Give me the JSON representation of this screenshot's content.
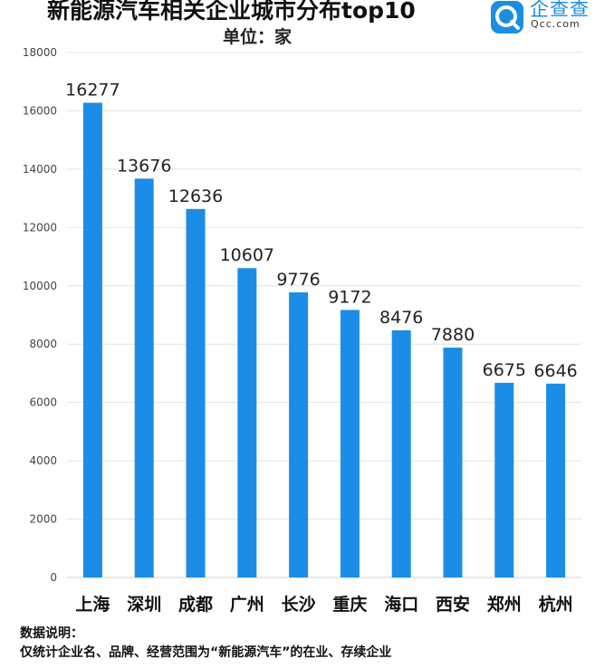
{
  "header": {
    "title": "新能源汽车相关企业城市分布top10",
    "unit_label": "单位：家",
    "brand_name": "企查查",
    "brand_domain": "Qcc.com",
    "brand_color": "#1a8fe0"
  },
  "chart_data": {
    "type": "bar",
    "title": "新能源汽车相关企业城市分布top10",
    "subtitle": "单位：家",
    "categories": [
      "上海",
      "深圳",
      "成都",
      "广州",
      "长沙",
      "重庆",
      "海口",
      "西安",
      "郑州",
      "杭州"
    ],
    "values": [
      16277,
      13676,
      12636,
      10607,
      9776,
      9172,
      8476,
      7880,
      6675,
      6646
    ],
    "ylim": [
      0,
      18000
    ],
    "yticks": [
      0,
      2000,
      4000,
      6000,
      8000,
      10000,
      12000,
      14000,
      16000,
      18000
    ],
    "grid": true,
    "bar_color": "#1b8de6",
    "data_labels": true
  },
  "notes": {
    "heading": "数据说明：",
    "line1": "仅统计企业名、品牌、经营范围为“新能源汽车”的在业、存续企业"
  }
}
